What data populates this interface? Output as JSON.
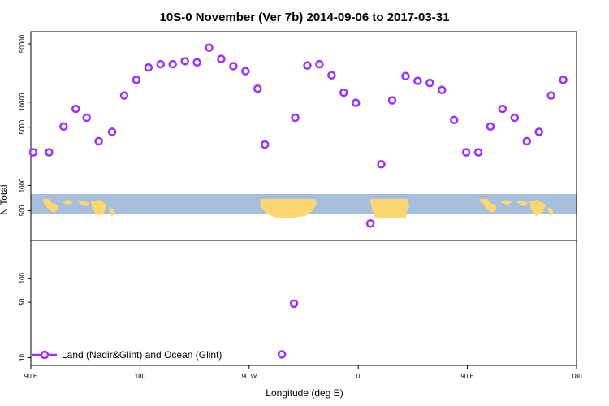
{
  "chart_data": {
    "type": "scatter",
    "title": "10S-0 November (Ver 7b)   2014-09-06 to 2017-03-31",
    "xlabel": "Longitude (deg E)",
    "ylabel": "N Total",
    "x_ticks": [
      {
        "lon": 90,
        "label": "90 E"
      },
      {
        "lon": 180,
        "label": "180"
      },
      {
        "lon": 270,
        "label": "90 W"
      },
      {
        "lon": 360,
        "label": "0"
      },
      {
        "lon": 450,
        "label": "90 E"
      },
      {
        "lon": 540,
        "label": "180"
      }
    ],
    "xlim": [
      90,
      540
    ],
    "log_scale_y": true,
    "upper_panel": {
      "ylim": [
        220,
        70000
      ],
      "y_ticks": [
        {
          "value": 500,
          "label": "500"
        },
        {
          "value": 1000,
          "label": "1000"
        },
        {
          "value": 5000,
          "label": "5000"
        },
        {
          "value": 10000,
          "label": "10000"
        },
        {
          "value": 50000,
          "label": "50000"
        }
      ],
      "map_strip": {
        "ymin": 450,
        "ymax": 790,
        "ocean_color": "#a7bedc",
        "land_color": "#fcd770"
      }
    },
    "lower_panel": {
      "ylim": [
        8,
        300
      ],
      "y_ticks": [
        {
          "value": 10,
          "label": "10"
        },
        {
          "value": 50,
          "label": "50"
        },
        {
          "value": 100,
          "label": "100"
        }
      ]
    },
    "series": [
      {
        "name": "Land (Nadir&Glint) and Ocean (Glint)",
        "color": "#9b30ff",
        "points": [
          [
            92,
            2500
          ],
          [
            105,
            2500
          ],
          [
            117,
            5100
          ],
          [
            127,
            8300
          ],
          [
            136,
            6500
          ],
          [
            146,
            3400
          ],
          [
            157,
            4400
          ],
          [
            167,
            12000
          ],
          [
            177,
            18500
          ],
          [
            187,
            26000
          ],
          [
            197,
            28500
          ],
          [
            207,
            28500
          ],
          [
            217,
            31000
          ],
          [
            227,
            30000
          ],
          [
            237,
            45000
          ],
          [
            247,
            33000
          ],
          [
            257,
            27000
          ],
          [
            267,
            23500
          ],
          [
            277,
            14500
          ],
          [
            283,
            3100
          ],
          [
            308,
            6500
          ],
          [
            318,
            27500
          ],
          [
            328,
            28500
          ],
          [
            338,
            21000
          ],
          [
            348,
            13000
          ],
          [
            358,
            9800
          ],
          [
            370,
            350
          ],
          [
            379,
            1800
          ],
          [
            388,
            10500
          ],
          [
            399,
            20500
          ],
          [
            409,
            18000
          ],
          [
            419,
            17000
          ],
          [
            429,
            14000
          ],
          [
            439,
            6100
          ],
          [
            449,
            2500
          ],
          [
            459,
            2500
          ],
          [
            469,
            5100
          ],
          [
            479,
            8300
          ],
          [
            489,
            6500
          ],
          [
            499,
            3400
          ],
          [
            509,
            4400
          ],
          [
            519,
            12000
          ],
          [
            529,
            18500
          ],
          [
            297,
            11
          ],
          [
            307,
            48
          ]
        ]
      }
    ]
  }
}
